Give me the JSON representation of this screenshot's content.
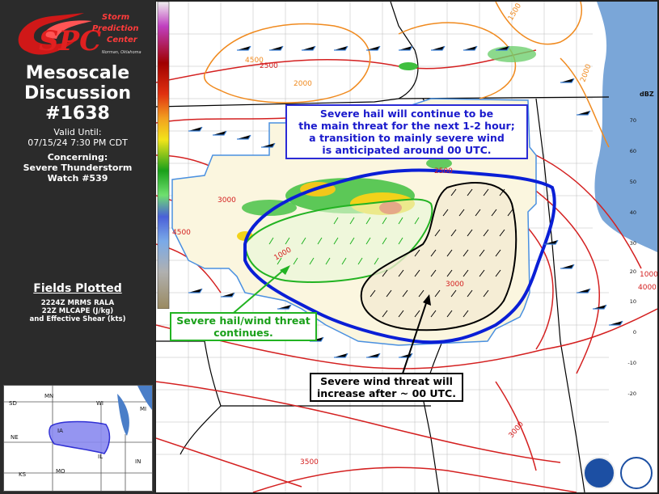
{
  "logo": {
    "line1": "Storm",
    "line2": "Prediction",
    "line3": "Center",
    "sub": "Norman, Oklahoma"
  },
  "title": {
    "line1": "Mesoscale",
    "line2": "Discussion",
    "line3": "#1638"
  },
  "valid": {
    "label": "Valid Until:",
    "value": "07/15/24 7:30 PM CDT"
  },
  "concerning": {
    "label": "Concerning:",
    "line1": "Severe Thunderstorm",
    "line2": "Watch #539"
  },
  "fields": {
    "title": "Fields Plotted",
    "line1": "2224Z MRMS RALA",
    "line2": "22Z MLCAPE (J/kg)",
    "line3": "and Effective Shear (kts)"
  },
  "inset": {
    "states": [
      "SD",
      "MN",
      "WI",
      "MI",
      "NE",
      "IA",
      "IL",
      "IN",
      "KS",
      "MO"
    ]
  },
  "callouts": {
    "blue": {
      "line1": "Severe hail will continue to be",
      "line2": "the main threat for the next 1-2 hour;",
      "line3": "a transition to mainly severe wind",
      "line4": "is anticipated around 00 UTC."
    },
    "green": {
      "line1": "Severe hail/wind threat",
      "line2": "continues."
    },
    "black": {
      "line1": "Severe wind threat will",
      "line2": "increase after ~ 00 UTC."
    }
  },
  "colorbar": {
    "unit": "dBZ",
    "ticks": [
      "70",
      "60",
      "50",
      "40",
      "30",
      "20",
      "10",
      "0",
      "-10",
      "-20"
    ]
  },
  "contour_labels": [
    "2500",
    "1500",
    "4500",
    "2000",
    "2000",
    "3000",
    "4500",
    "3000",
    "1000",
    "1000",
    "3000",
    "4000",
    "3500",
    "2500"
  ],
  "colors": {
    "outline": "#0a1fd6",
    "hail": "#22b322",
    "wind": "#000000",
    "cape": "#d42020",
    "shear": "#3aa0e0",
    "contour_orange": "#f08a1e"
  }
}
